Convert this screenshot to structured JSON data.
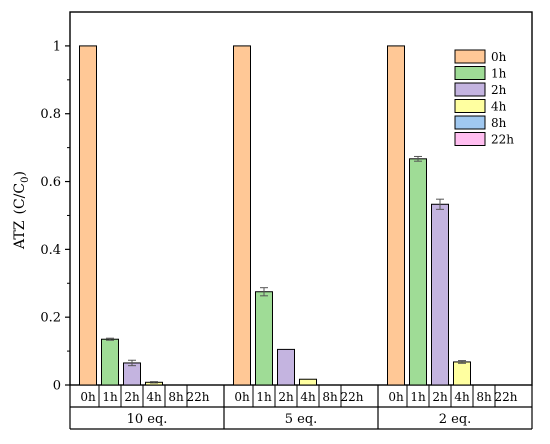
{
  "chart_data": {
    "type": "bar",
    "ylabel_main": "ATZ",
    "ylabel_unit_prefix": "(C/C",
    "ylabel_unit_sub": "0",
    "ylabel_unit_suffix": ")",
    "ylim": [
      0,
      1.1
    ],
    "yticks": [
      "0",
      "0.2",
      "0.4",
      "0.6",
      "0.8",
      "1"
    ],
    "ytick_values": [
      0,
      0.2,
      0.4,
      0.6,
      0.8,
      1.0
    ],
    "legend_position": "top-right",
    "grid": false,
    "series": [
      {
        "name": "0h",
        "color": "#FFC896"
      },
      {
        "name": "1h",
        "color": "#9FDC96"
      },
      {
        "name": "2h",
        "color": "#C4B4E0"
      },
      {
        "name": "4h",
        "color": "#FFFFA0"
      },
      {
        "name": "8h",
        "color": "#A0C8F0"
      },
      {
        "name": "22h",
        "color": "#FFBEF0"
      }
    ],
    "groups": [
      {
        "name": "10 eq.",
        "categories": [
          "0h",
          "1h",
          "2h",
          "4h",
          "8h",
          "22h"
        ],
        "values": [
          1.0,
          0.135,
          0.065,
          0.008,
          0.0,
          0.0
        ],
        "errors": [
          0,
          0.003,
          0.008,
          0.002,
          0,
          0
        ]
      },
      {
        "name": "5 eq.",
        "categories": [
          "0h",
          "1h",
          "2h",
          "4h",
          "8h",
          "22h"
        ],
        "values": [
          1.0,
          0.275,
          0.105,
          0.017,
          0.0,
          0.0
        ],
        "errors": [
          0,
          0.012,
          0.0,
          0.0,
          0,
          0
        ]
      },
      {
        "name": "2 eq.",
        "categories": [
          "0h",
          "1h",
          "2h",
          "4h",
          "8h",
          "22h"
        ],
        "values": [
          1.0,
          0.667,
          0.533,
          0.068,
          0.0,
          0.0
        ],
        "errors": [
          0,
          0.007,
          0.015,
          0.004,
          0,
          0
        ]
      }
    ]
  }
}
